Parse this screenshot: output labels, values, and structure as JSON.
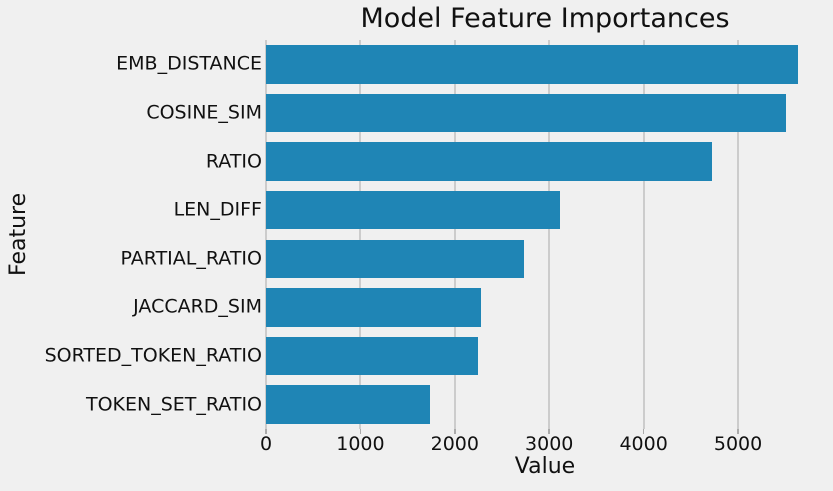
{
  "chart_data": {
    "type": "bar",
    "orientation": "horizontal",
    "title": "Model Feature Importances",
    "xlabel": "Value",
    "ylabel": "Feature",
    "categories": [
      "EMB_DISTANCE",
      "COSINE_SIM",
      "RATIO",
      "LEN_DIFF",
      "PARTIAL_RATIO",
      "JACCARD_SIM",
      "SORTED_TOKEN_RATIO",
      "TOKEN_SET_RATIO"
    ],
    "values": [
      5630,
      5510,
      4720,
      3115,
      2735,
      2280,
      2250,
      1740
    ],
    "xticks": [
      0,
      1000,
      2000,
      3000,
      4000,
      5000
    ],
    "xlim": [
      0,
      5900
    ],
    "grid": true,
    "legend": false,
    "colors": {
      "bar": "#1f85b5",
      "background": "#f0f0f0",
      "grid": "#cccccc",
      "tick_mark": "#ababab",
      "text": "#111111"
    }
  }
}
